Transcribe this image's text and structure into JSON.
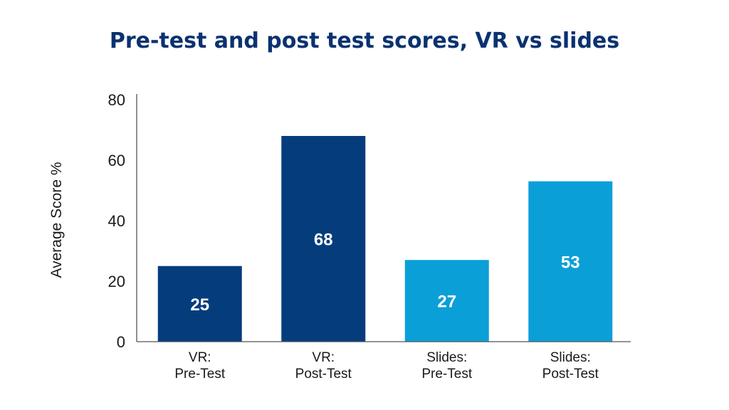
{
  "chart_data": {
    "type": "bar",
    "title": "Pre-test and post test scores, VR vs slides",
    "xlabel": "",
    "ylabel": "Average Score %",
    "ylim": [
      0,
      80
    ],
    "yticks": [
      0,
      20,
      40,
      60,
      80
    ],
    "grid": false,
    "categories": [
      [
        "VR:",
        "Pre-Test"
      ],
      [
        "VR:",
        "Post-Test"
      ],
      [
        "Slides:",
        "Pre-Test"
      ],
      [
        "Slides:",
        "Post-Test"
      ]
    ],
    "values": [
      25,
      68,
      27,
      53
    ],
    "bar_colors": [
      "#053d7c",
      "#053d7c",
      "#0b9fd8",
      "#0b9fd8"
    ],
    "axis_color": "#555555",
    "data_label_color": "#ffffff"
  }
}
